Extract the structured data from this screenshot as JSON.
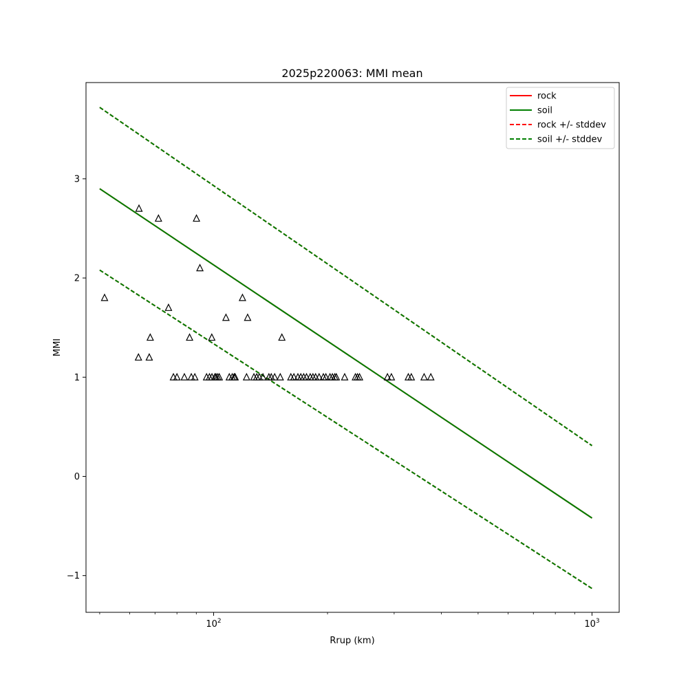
{
  "chart_data": {
    "type": "line",
    "title": "2025p220063: MMI mean",
    "xlabel": "Rrup (km)",
    "ylabel": "MMI",
    "x_scale": "log",
    "xlim": [
      46,
      1180
    ],
    "ylim": [
      -1.37,
      3.97
    ],
    "x_ticks": [
      {
        "value": 100,
        "base": "10",
        "exp": "2"
      },
      {
        "value": 1000,
        "base": "10",
        "exp": "3"
      }
    ],
    "y_ticks": [
      {
        "value": -1,
        "label": "−1"
      },
      {
        "value": 0,
        "label": "0"
      },
      {
        "value": 1,
        "label": "1"
      },
      {
        "value": 2,
        "label": "2"
      },
      {
        "value": 3,
        "label": "3"
      }
    ],
    "grid": false,
    "legend_position": "top-right",
    "series": [
      {
        "name": "rock",
        "color": "#ff0000",
        "dash": "solid",
        "x": [
          50,
          1000
        ],
        "y": [
          2.9,
          -0.42
        ]
      },
      {
        "name": "soil",
        "color": "#007f00",
        "dash": "solid",
        "x": [
          50,
          1000
        ],
        "y": [
          2.9,
          -0.42
        ]
      },
      {
        "name": "rock +/- stddev",
        "color": "#ff0000",
        "dash": "dashed",
        "x": [
          50,
          1000
        ],
        "y": [
          3.72,
          0.31
        ],
        "x2": [
          50,
          1000
        ],
        "y2": [
          2.08,
          -1.13
        ]
      },
      {
        "name": "soil +/- stddev",
        "color": "#007f00",
        "dash": "dashed",
        "x": [
          50,
          1000
        ],
        "y": [
          3.72,
          0.31
        ],
        "x2": [
          50,
          1000
        ],
        "y2": [
          2.08,
          -1.13
        ]
      }
    ],
    "stations": {
      "marker": "triangle-open",
      "color": "#000000",
      "points": [
        [
          51.5,
          1.8
        ],
        [
          63.5,
          2.7
        ],
        [
          63.3,
          1.2
        ],
        [
          67.6,
          1.2
        ],
        [
          68.0,
          1.4
        ],
        [
          71.5,
          2.6
        ],
        [
          76.0,
          1.7
        ],
        [
          78.3,
          1.0
        ],
        [
          80.0,
          1.0
        ],
        [
          83.7,
          1.0
        ],
        [
          86.4,
          1.4
        ],
        [
          87.3,
          1.0
        ],
        [
          89.2,
          1.0
        ],
        [
          90.1,
          2.6
        ],
        [
          92.0,
          2.1
        ],
        [
          95.8,
          1.0
        ],
        [
          97.5,
          1.0
        ],
        [
          98.9,
          1.4
        ],
        [
          99.0,
          1.0
        ],
        [
          100.8,
          1.0
        ],
        [
          101.5,
          1.0
        ],
        [
          102.5,
          1.0
        ],
        [
          103.5,
          1.0
        ],
        [
          107.8,
          1.6
        ],
        [
          110.0,
          1.0
        ],
        [
          112.0,
          1.0
        ],
        [
          113.3,
          1.0
        ],
        [
          114.0,
          1.0
        ],
        [
          119.2,
          1.8
        ],
        [
          122.2,
          1.0
        ],
        [
          123.0,
          1.6
        ],
        [
          127.8,
          1.0
        ],
        [
          130.0,
          1.0
        ],
        [
          132.0,
          1.0
        ],
        [
          135.0,
          1.0
        ],
        [
          140.0,
          1.0
        ],
        [
          142.0,
          1.0
        ],
        [
          145.0,
          1.0
        ],
        [
          150.0,
          1.0
        ],
        [
          151.5,
          1.4
        ],
        [
          160.0,
          1.0
        ],
        [
          163.0,
          1.0
        ],
        [
          167.0,
          1.0
        ],
        [
          170.0,
          1.0
        ],
        [
          173.0,
          1.0
        ],
        [
          176.0,
          1.0
        ],
        [
          180.0,
          1.0
        ],
        [
          183.0,
          1.0
        ],
        [
          186.0,
          1.0
        ],
        [
          190.0,
          1.0
        ],
        [
          195.0,
          1.0
        ],
        [
          198.0,
          1.0
        ],
        [
          203.0,
          1.0
        ],
        [
          206.0,
          1.0
        ],
        [
          209.0,
          1.0
        ],
        [
          211.0,
          1.0
        ],
        [
          222.0,
          1.0
        ],
        [
          237.0,
          1.0
        ],
        [
          240.0,
          1.0
        ],
        [
          243.0,
          1.0
        ],
        [
          288.0,
          1.0
        ],
        [
          295.0,
          1.0
        ],
        [
          327.0,
          1.0
        ],
        [
          333.0,
          1.0
        ],
        [
          360.0,
          1.0
        ],
        [
          375.0,
          1.0
        ]
      ]
    }
  }
}
